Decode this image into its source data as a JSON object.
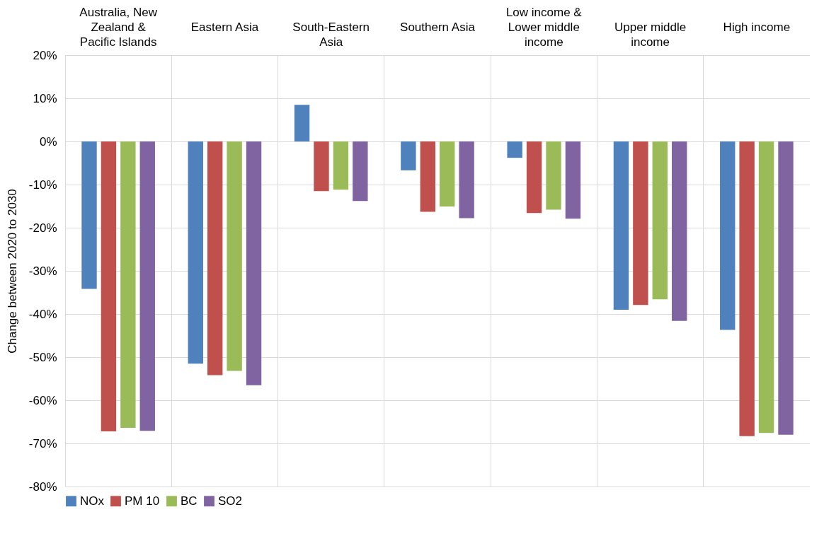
{
  "chart_data": {
    "type": "bar",
    "ylabel": "Change between 2020 to 2030",
    "categories": [
      "Australia, New Zealand & Pacific Islands",
      "Eastern Asia",
      "South-Eastern Asia",
      "Southern Asia",
      "Low income & Lower middle income",
      "Upper middle income",
      "High income"
    ],
    "series": [
      {
        "name": "NOx",
        "color": "#4f81bd",
        "values": [
          -34.2,
          -51.5,
          8.5,
          -6.7,
          -3.8,
          -39.0,
          -43.7
        ]
      },
      {
        "name": "PM 10",
        "color": "#c0504d",
        "values": [
          -67.2,
          -54.2,
          -11.5,
          -16.3,
          -16.6,
          -37.9,
          -68.3
        ]
      },
      {
        "name": "BC",
        "color": "#9bbb59",
        "values": [
          -66.4,
          -53.2,
          -11.2,
          -15.1,
          -15.8,
          -36.6,
          -67.6
        ]
      },
      {
        "name": "SO2",
        "color": "#8064a2",
        "values": [
          -67.1,
          -56.5,
          -13.8,
          -17.8,
          -17.9,
          -41.6,
          -68.0
        ]
      }
    ],
    "ylim": [
      -80,
      20
    ],
    "yticks": [
      {
        "value": 20,
        "label": "20%"
      },
      {
        "value": 10,
        "label": "10%"
      },
      {
        "value": 0,
        "label": "0%"
      },
      {
        "value": -10,
        "label": "-10%"
      },
      {
        "value": -20,
        "label": "-20%"
      },
      {
        "value": -30,
        "label": "-30%"
      },
      {
        "value": -40,
        "label": "-40%"
      },
      {
        "value": -50,
        "label": "-50%"
      },
      {
        "value": -60,
        "label": "-60%"
      },
      {
        "value": -70,
        "label": "-70%"
      },
      {
        "value": -80,
        "label": "-80%"
      }
    ],
    "grid": true,
    "legend": "bottom"
  }
}
